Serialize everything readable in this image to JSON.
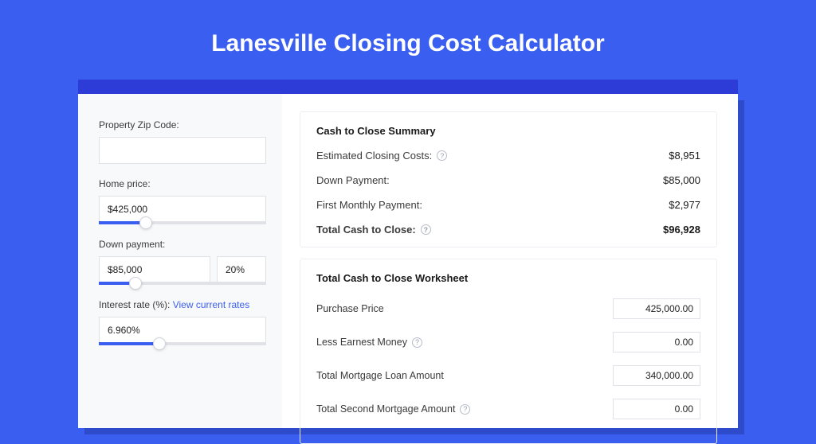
{
  "colors": {
    "page_bg": "#3a5ff0",
    "nav_bg": "#2d3cd6",
    "card_bg": "#ffffff",
    "sidebar_bg": "#f8f9fb",
    "border": "#e0e2e8",
    "accent": "#3a5ff0",
    "text": "#3a3a3a",
    "text_strong": "#1a1a1a"
  },
  "page": {
    "title": "Lanesville Closing Cost Calculator"
  },
  "sidebar": {
    "zip": {
      "label": "Property Zip Code:",
      "value": ""
    },
    "home_price": {
      "label": "Home price:",
      "value": "$425,000",
      "slider_pct": 28
    },
    "down_payment": {
      "label": "Down payment:",
      "value": "$85,000",
      "pct": "20%",
      "slider_pct": 22
    },
    "interest": {
      "label": "Interest rate (%): ",
      "link": "View current rates",
      "value": "6.960%",
      "slider_pct": 36
    }
  },
  "summary": {
    "title": "Cash to Close Summary",
    "rows": [
      {
        "label": "Estimated Closing Costs:",
        "help": true,
        "value": "$8,951",
        "bold": false
      },
      {
        "label": "Down Payment:",
        "help": false,
        "value": "$85,000",
        "bold": false
      },
      {
        "label": "First Monthly Payment:",
        "help": false,
        "value": "$2,977",
        "bold": false
      },
      {
        "label": "Total Cash to Close:",
        "help": true,
        "value": "$96,928",
        "bold": true
      }
    ]
  },
  "worksheet": {
    "title": "Total Cash to Close Worksheet",
    "rows": [
      {
        "label": "Purchase Price",
        "help": false,
        "value": "425,000.00"
      },
      {
        "label": "Less Earnest Money",
        "help": true,
        "value": "0.00"
      },
      {
        "label": "Total Mortgage Loan Amount",
        "help": false,
        "value": "340,000.00"
      },
      {
        "label": "Total Second Mortgage Amount",
        "help": true,
        "value": "0.00"
      }
    ]
  }
}
